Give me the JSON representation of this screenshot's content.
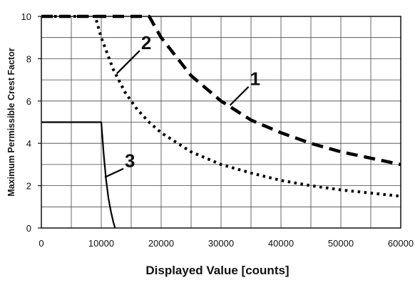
{
  "chart_data": {
    "type": "line",
    "xlabel": "Displayed Value [counts]",
    "ylabel": "Maximum Permissible Crest Factor",
    "xlim": [
      0,
      60000
    ],
    "ylim": [
      0,
      10
    ],
    "xticks": [
      0,
      10000,
      20000,
      30000,
      40000,
      50000,
      60000
    ],
    "yticks": [
      0,
      2,
      4,
      6,
      8,
      10
    ],
    "grid": true,
    "series": [
      {
        "name": "1",
        "style": "dashed",
        "x": [
          0,
          18000,
          20000,
          25000,
          30000,
          35000,
          40000,
          45000,
          50000,
          55000,
          60000
        ],
        "y": [
          10,
          10,
          9.0,
          7.2,
          6.0,
          5.1,
          4.5,
          4.0,
          3.6,
          3.3,
          3.0
        ]
      },
      {
        "name": "2",
        "style": "dotted",
        "x": [
          0,
          9000,
          10000,
          12000,
          14000,
          16000,
          18000,
          20000,
          25000,
          30000,
          35000,
          40000,
          45000,
          50000,
          55000,
          60000
        ],
        "y": [
          10,
          10,
          9.0,
          7.5,
          6.4,
          5.6,
          5.0,
          4.5,
          3.6,
          3.0,
          2.6,
          2.25,
          2.0,
          1.8,
          1.65,
          1.5
        ]
      },
      {
        "name": "3",
        "style": "solid",
        "x": [
          0,
          10000,
          10400,
          10800,
          11200,
          11600,
          12000,
          12300
        ],
        "y": [
          5,
          5,
          3.5,
          2.3,
          1.4,
          0.8,
          0.3,
          0
        ]
      }
    ],
    "annotations": [
      {
        "text": "1",
        "series": "1",
        "at_x": 31500,
        "at_y": 5.8
      },
      {
        "text": "2",
        "series": "2",
        "at_x": 12600,
        "at_y": 7.3
      },
      {
        "text": "3",
        "series": "3",
        "at_x": 10600,
        "at_y": 2.4
      }
    ]
  }
}
